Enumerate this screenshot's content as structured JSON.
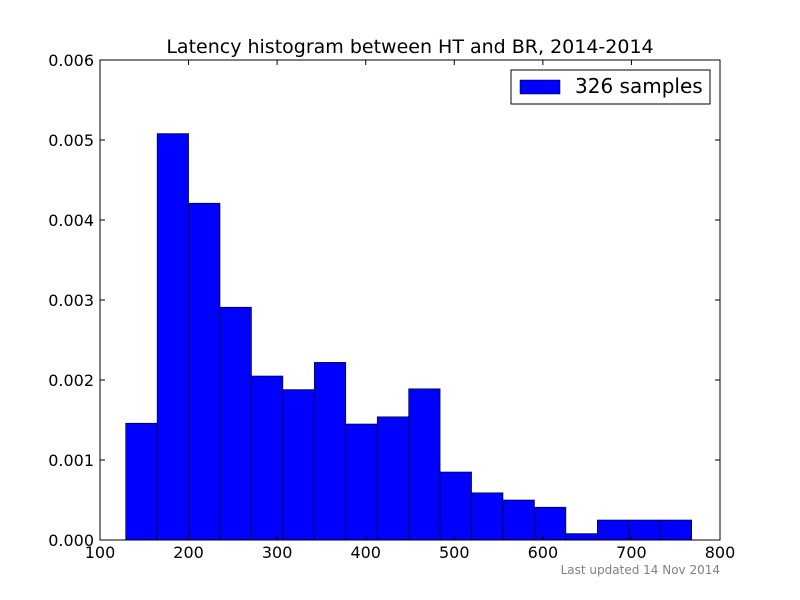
{
  "chart_data": {
    "type": "bar",
    "title": "Latency histogram between HT and BR, 2014-2014",
    "xlabel": "",
    "ylabel": "",
    "xlim": [
      100,
      800
    ],
    "ylim": [
      0,
      0.006
    ],
    "x_ticks": [
      {
        "value": 100,
        "label": "100"
      },
      {
        "value": 200,
        "label": "200"
      },
      {
        "value": 300,
        "label": "300"
      },
      {
        "value": 400,
        "label": "400"
      },
      {
        "value": 500,
        "label": "500"
      },
      {
        "value": 600,
        "label": "600"
      },
      {
        "value": 700,
        "label": "700"
      },
      {
        "value": 800,
        "label": "800"
      }
    ],
    "y_ticks": [
      {
        "value": 0,
        "label": "0.000"
      },
      {
        "value": 0.001,
        "label": "0.001"
      },
      {
        "value": 0.002,
        "label": "0.002"
      },
      {
        "value": 0.003,
        "label": "0.003"
      },
      {
        "value": 0.004,
        "label": "0.004"
      },
      {
        "value": 0.005,
        "label": "0.005"
      },
      {
        "value": 0.006,
        "label": "0.006"
      }
    ],
    "grid": false,
    "legend": {
      "position": "top-right",
      "entries": [
        {
          "label": "326 samples",
          "color": "#0000ff"
        }
      ]
    },
    "bar_color": "#0000ff",
    "bins": [
      {
        "x0": 129.0,
        "x1": 164.5,
        "value": 0.00146
      },
      {
        "x0": 164.5,
        "x1": 200.0,
        "value": 0.00508
      },
      {
        "x0": 200.0,
        "x1": 235.5,
        "value": 0.00421
      },
      {
        "x0": 235.5,
        "x1": 271.0,
        "value": 0.00291
      },
      {
        "x0": 271.0,
        "x1": 306.5,
        "value": 0.00205
      },
      {
        "x0": 306.5,
        "x1": 342.0,
        "value": 0.00188
      },
      {
        "x0": 342.0,
        "x1": 377.5,
        "value": 0.00222
      },
      {
        "x0": 377.5,
        "x1": 413.0,
        "value": 0.00145
      },
      {
        "x0": 413.0,
        "x1": 448.5,
        "value": 0.00154
      },
      {
        "x0": 448.5,
        "x1": 484.0,
        "value": 0.00189
      },
      {
        "x0": 484.0,
        "x1": 519.5,
        "value": 0.00085
      },
      {
        "x0": 519.5,
        "x1": 555.0,
        "value": 0.00059
      },
      {
        "x0": 555.0,
        "x1": 590.5,
        "value": 0.0005
      },
      {
        "x0": 590.5,
        "x1": 626.0,
        "value": 0.00041
      },
      {
        "x0": 626.0,
        "x1": 661.5,
        "value": 8e-05
      },
      {
        "x0": 661.5,
        "x1": 697.0,
        "value": 0.00025
      },
      {
        "x0": 697.0,
        "x1": 732.5,
        "value": 0.00025
      },
      {
        "x0": 732.5,
        "x1": 768.0,
        "value": 0.00025
      }
    ],
    "footnote": "Last updated 14 Nov 2014"
  }
}
